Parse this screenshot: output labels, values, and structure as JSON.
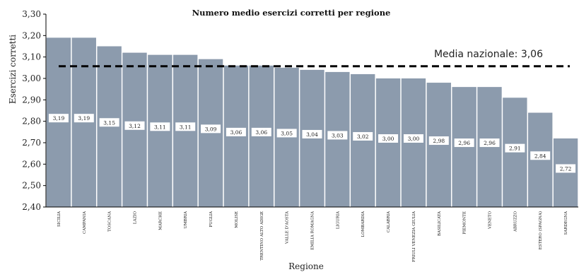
{
  "chart_data": {
    "type": "bar",
    "title": "Numero medio esercizi corretti per regione",
    "xlabel": "Regione",
    "ylabel": "Esercizi corretti",
    "ylim": [
      2.4,
      3.3
    ],
    "yticks": [
      "2,40",
      "2,50",
      "2,60",
      "2,70",
      "2,80",
      "2,90",
      "3,00",
      "3,10",
      "3,20",
      "3,30"
    ],
    "grid": false,
    "legend": "none",
    "bar_color": "#8c9bad",
    "categories": [
      "SICILIA",
      "CAMPANIA",
      "TOSCANA",
      "LAZIO",
      "MARCHE",
      "UMBRIA",
      "PUGLIA",
      "MOLISE",
      "TRENTINO ALTO ADIGE",
      "VALLE D'AOSTA",
      "EMILIA ROMAGNA",
      "LIGURIA",
      "LOMBARDIA",
      "CALABRIA",
      "FRIULI VENEZIA GIULIA",
      "BASILICATA",
      "PIEMONTE",
      "VENETO",
      "ABRUZZO",
      "ESTERO (SPAGNA)",
      "SARDEGNA"
    ],
    "values": [
      3.19,
      3.19,
      3.15,
      3.12,
      3.11,
      3.11,
      3.09,
      3.06,
      3.06,
      3.05,
      3.04,
      3.03,
      3.02,
      3.0,
      3.0,
      2.98,
      2.96,
      2.96,
      2.91,
      2.84,
      2.72
    ],
    "value_labels": [
      "3,19",
      "3,19",
      "3,15",
      "3,12",
      "3,11",
      "3,11",
      "3,09",
      "3,06",
      "3,06",
      "3,05",
      "3,04",
      "3,03",
      "3,02",
      "3,00",
      "3,00",
      "2,98",
      "2,96",
      "2,96",
      "2,91",
      "2,84",
      "2,72"
    ],
    "reference_line": {
      "label": "Media nazionale: 3,06",
      "value": 3.06
    }
  }
}
